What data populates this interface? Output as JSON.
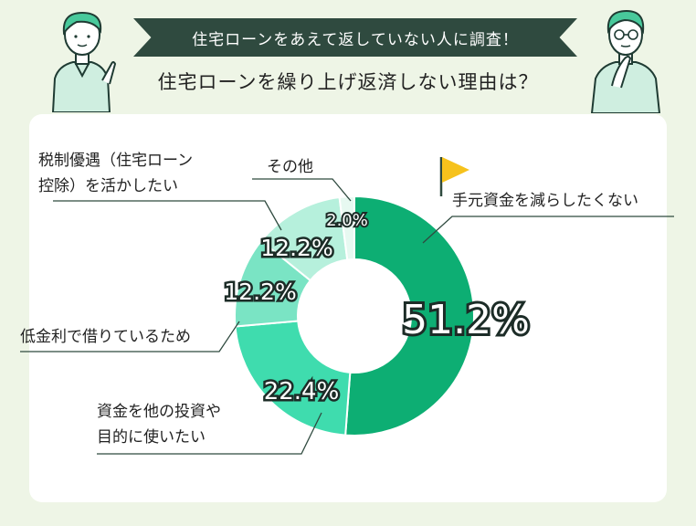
{
  "header": {
    "banner": "住宅ローンをあえて返していない人に調査！",
    "title": "住宅ローンを繰り上げ返済しない理由は？"
  },
  "chart_data": {
    "type": "pie",
    "categories": [
      "手元資金を減らしたくない",
      "資金を他の投資や目的に使いたい",
      "低金利で借りているため",
      "税制優遇（住宅ローン控除）を活かしたい",
      "その他"
    ],
    "values": [
      51.2,
      22.4,
      12.2,
      12.2,
      2.0
    ],
    "value_labels": [
      "51.2%",
      "22.4%",
      "12.2%",
      "12.2%",
      "2.0%"
    ],
    "colors": [
      "#0dae73",
      "#3fdcae",
      "#7ae4c4",
      "#b6f0dc",
      "#e7f9f1"
    ]
  },
  "labels": {
    "own_funds": "手元資金を減らしたくない",
    "invest_line1": "資金を他の投資や",
    "invest_line2": "目的に使いたい",
    "low_rate": "低金利で借りているため",
    "tax_line1": "税制優遇（住宅ローン",
    "tax_line2": "控除）を活かしたい",
    "other": "その他"
  }
}
